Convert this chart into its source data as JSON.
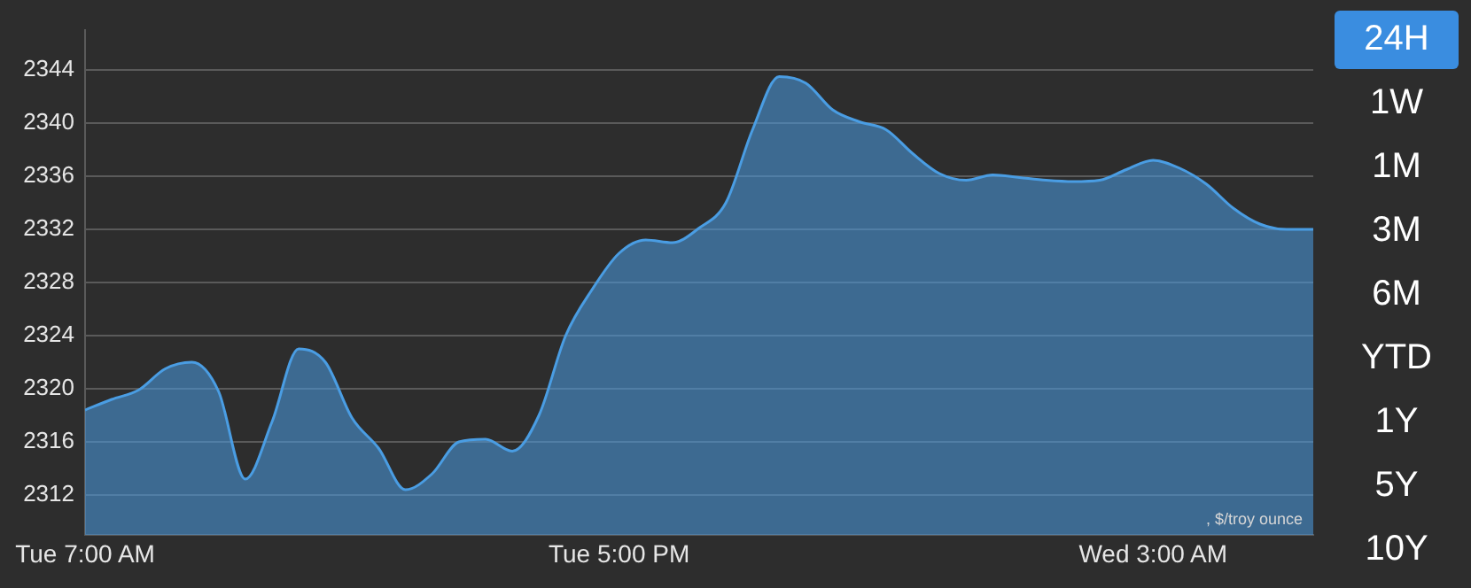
{
  "chart_data": {
    "type": "area",
    "categories": [
      "Tue 7:00 AM",
      null,
      null,
      null,
      null,
      null,
      null,
      null,
      null,
      null,
      null,
      null,
      null,
      null,
      null,
      null,
      null,
      null,
      null,
      null,
      "Tue 5:00 PM",
      null,
      null,
      null,
      null,
      null,
      null,
      null,
      null,
      null,
      null,
      null,
      null,
      null,
      null,
      null,
      null,
      null,
      null,
      null,
      "Wed 3:00 AM",
      null,
      null,
      null,
      null,
      null,
      null
    ],
    "series": [
      {
        "color": "#4a9de3",
        "values": [
          2318.4,
          2319.2,
          2319.9,
          2321.5,
          2322,
          2319.8,
          2313.2,
          2317.5,
          2323,
          2322,
          2317.8,
          2315.5,
          2312.4,
          2313.6,
          2316,
          2316.2,
          2315.3,
          2318,
          2324,
          2327.5,
          2330.2,
          2331.2,
          2331,
          2332.1,
          2334,
          2339.5,
          2343.5,
          2343,
          2341,
          2340.1,
          2339.5,
          2337.7,
          2336.2,
          2335.7,
          2336.1,
          2335.9,
          2335.7,
          2335.6,
          2335.7,
          2336.5,
          2337.2,
          2336.6,
          2335.4,
          2333.6,
          2332.4,
          2332,
          2332
        ]
      }
    ],
    "ylim": [
      2309,
      2347
    ],
    "yticks": [
      2312,
      2316,
      2320,
      2324,
      2328,
      2332,
      2336,
      2340,
      2344
    ],
    "grid": "y",
    "annotations": [
      ", $/troy ounce",
      "24H",
      "1W",
      "1M",
      "3M",
      "6M",
      "YTD",
      "1Y",
      "5Y",
      "10Y"
    ]
  }
}
